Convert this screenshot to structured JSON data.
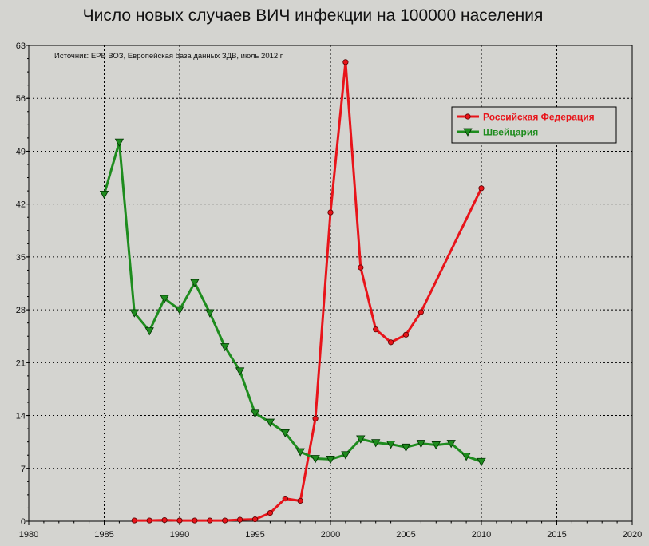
{
  "chart_data": {
    "type": "line",
    "title": "Число новых случаев ВИЧ инфекции на 100000 населения",
    "source_note": "Источник: ЕРБ ВОЗ, Европейская база данных ЗДВ, июль 2012 г.",
    "xlabel": "",
    "ylabel": "",
    "xlim": [
      1980,
      2020
    ],
    "ylim": [
      0,
      63
    ],
    "x_ticks": [
      "1980",
      "1985",
      "1990",
      "1995",
      "2000",
      "2005",
      "2010",
      "2015",
      "2020"
    ],
    "y_ticks": [
      "0",
      "7",
      "14",
      "21",
      "28",
      "35",
      "42",
      "49",
      "56",
      "63"
    ],
    "grid": true,
    "legend_position": "top-right",
    "series": [
      {
        "name": "Российская Федерация",
        "color": "#e8141a",
        "marker": "circle",
        "x": [
          1987,
          1988,
          1989,
          1990,
          1991,
          1992,
          1993,
          1994,
          1995,
          1996,
          1997,
          1998,
          1999,
          2000,
          2001,
          2002,
          2003,
          2004,
          2005,
          2006,
          2010
        ],
        "y": [
          0.1,
          0.1,
          0.15,
          0.1,
          0.1,
          0.1,
          0.1,
          0.2,
          0.25,
          1.1,
          3.0,
          2.7,
          13.6,
          40.9,
          60.8,
          33.6,
          25.4,
          23.7,
          24.7,
          27.7,
          44.1
        ]
      },
      {
        "name": "Швейцария",
        "color": "#1e8c1e",
        "marker": "triangle-down",
        "x": [
          1985,
          1986,
          1987,
          1988,
          1989,
          1990,
          1991,
          1992,
          1993,
          1994,
          1995,
          1996,
          1997,
          1998,
          1999,
          2000,
          2001,
          2002,
          2003,
          2004,
          2005,
          2006,
          2007,
          2008,
          2009,
          2010
        ],
        "y": [
          43.3,
          50.2,
          27.6,
          25.2,
          29.5,
          28.0,
          31.6,
          27.6,
          23.1,
          19.9,
          14.3,
          13.1,
          11.7,
          9.2,
          8.3,
          8.2,
          8.8,
          10.9,
          10.4,
          10.2,
          9.8,
          10.3,
          10.1,
          10.3,
          8.6,
          7.9
        ]
      }
    ]
  }
}
